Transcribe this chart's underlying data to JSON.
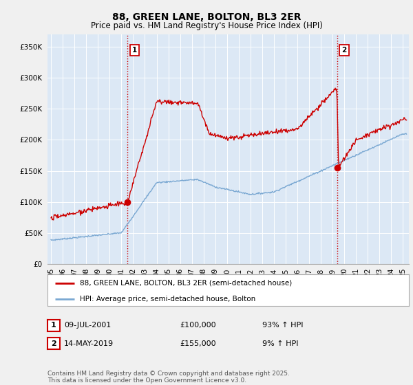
{
  "title": "88, GREEN LANE, BOLTON, BL3 2ER",
  "subtitle": "Price paid vs. HM Land Registry's House Price Index (HPI)",
  "title_fontsize": 10,
  "subtitle_fontsize": 8.5,
  "ylabel_ticks": [
    "£0",
    "£50K",
    "£100K",
    "£150K",
    "£200K",
    "£250K",
    "£300K",
    "£350K"
  ],
  "ytick_vals": [
    0,
    50000,
    100000,
    150000,
    200000,
    250000,
    300000,
    350000
  ],
  "ylim": [
    0,
    370000
  ],
  "xlim_start": 1994.7,
  "xlim_end": 2025.5,
  "xtick_years": [
    1995,
    1996,
    1997,
    1998,
    1999,
    2000,
    2001,
    2002,
    2003,
    2004,
    2005,
    2006,
    2007,
    2008,
    2009,
    2010,
    2011,
    2012,
    2013,
    2014,
    2015,
    2016,
    2017,
    2018,
    2019,
    2020,
    2021,
    2022,
    2023,
    2024,
    2025
  ],
  "sale1_x": 2001.52,
  "sale1_y": 100000,
  "sale1_label": "1",
  "sale2_x": 2019.37,
  "sale2_y": 155000,
  "sale2_label": "2",
  "vline_color": "#cc0000",
  "vline_style": ":",
  "hpi_line_color": "#7aa8d2",
  "price_line_color": "#cc0000",
  "background_color": "#f0f0f0",
  "plot_bg_color": "#dce8f5",
  "grid_color": "#ffffff",
  "legend_entry1": "88, GREEN LANE, BOLTON, BL3 2ER (semi-detached house)",
  "legend_entry2": "HPI: Average price, semi-detached house, Bolton",
  "table_row1": [
    "1",
    "09-JUL-2001",
    "£100,000",
    "93% ↑ HPI"
  ],
  "table_row2": [
    "2",
    "14-MAY-2019",
    "£155,000",
    "9% ↑ HPI"
  ],
  "footnote": "Contains HM Land Registry data © Crown copyright and database right 2025.\nThis data is licensed under the Open Government Licence v3.0.",
  "footnote_fontsize": 6.5
}
